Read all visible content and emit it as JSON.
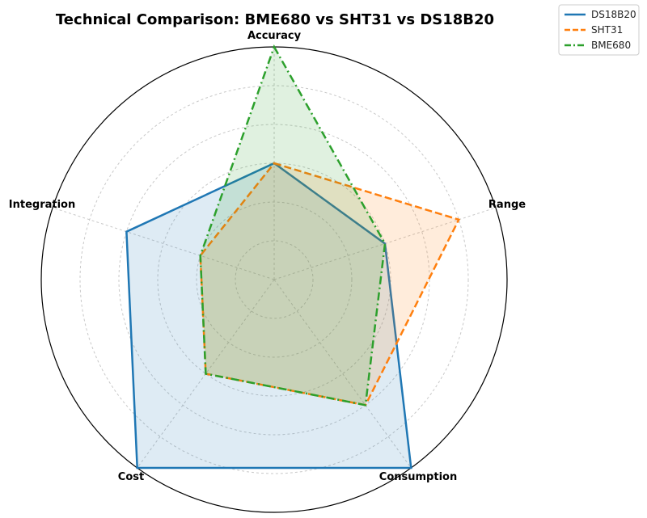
{
  "chart_data": {
    "type": "radar",
    "title": "Technical Comparison: BME680 vs SHT31 vs DS18B20",
    "axes": [
      "Accuracy",
      "Range",
      "Consumption",
      "Cost",
      "Integration"
    ],
    "rlim": [
      0,
      6
    ],
    "grid": true,
    "legend_position": "top-right",
    "series": [
      {
        "name": "DS18B20",
        "color": "#1f77b4",
        "line_style": "solid",
        "values": [
          3,
          3,
          6,
          6,
          4
        ]
      },
      {
        "name": "SHT31",
        "color": "#ff7f0e",
        "line_style": "dashed",
        "values": [
          3,
          5,
          4,
          3,
          2
        ]
      },
      {
        "name": "BME680",
        "color": "#2ca02c",
        "line_style": "dashdot",
        "values": [
          6,
          3,
          4,
          3,
          2
        ]
      }
    ]
  }
}
